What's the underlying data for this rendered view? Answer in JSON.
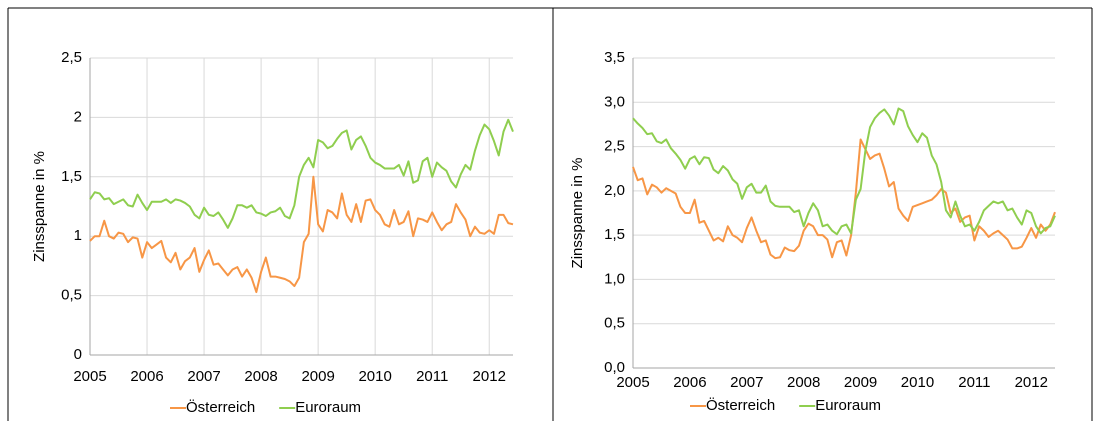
{
  "chart_data": [
    {
      "type": "line",
      "y_label": "Zinsspanne in %",
      "categories": [
        "2005",
        null,
        null,
        null,
        null,
        null,
        null,
        null,
        null,
        null,
        null,
        null,
        "2006",
        null,
        null,
        null,
        null,
        null,
        null,
        null,
        null,
        null,
        null,
        null,
        "2007",
        null,
        null,
        null,
        null,
        null,
        null,
        null,
        null,
        null,
        null,
        null,
        "2008",
        null,
        null,
        null,
        null,
        null,
        null,
        null,
        null,
        null,
        null,
        null,
        "2009",
        null,
        null,
        null,
        null,
        null,
        null,
        null,
        null,
        null,
        null,
        null,
        "2010",
        null,
        null,
        null,
        null,
        null,
        null,
        null,
        null,
        null,
        null,
        null,
        "2011",
        null,
        null,
        null,
        null,
        null,
        null,
        null,
        null,
        null,
        null,
        null,
        "2012",
        null,
        null,
        null,
        null,
        null
      ],
      "series": [
        {
          "name": "Österreich",
          "color": "#f79646",
          "values": [
            0.96,
            1.0,
            1.0,
            1.13,
            1.0,
            0.98,
            1.03,
            1.02,
            0.95,
            0.99,
            0.98,
            0.82,
            0.95,
            0.9,
            0.93,
            0.96,
            0.82,
            0.78,
            0.86,
            0.72,
            0.79,
            0.82,
            0.9,
            0.7,
            0.8,
            0.88,
            0.76,
            0.77,
            0.72,
            0.67,
            0.72,
            0.74,
            0.66,
            0.72,
            0.65,
            0.53,
            0.7,
            0.82,
            0.66,
            0.66,
            0.65,
            0.64,
            0.62,
            0.58,
            0.65,
            0.95,
            1.02,
            1.5,
            1.1,
            1.04,
            1.22,
            1.2,
            1.15,
            1.36,
            1.18,
            1.12,
            1.27,
            1.12,
            1.3,
            1.31,
            1.22,
            1.18,
            1.1,
            1.08,
            1.22,
            1.1,
            1.12,
            1.21,
            1.0,
            1.15,
            1.14,
            1.12,
            1.2,
            1.12,
            1.05,
            1.1,
            1.12,
            1.27,
            1.2,
            1.14,
            1.0,
            1.08,
            1.03,
            1.02,
            1.05,
            1.02,
            1.18,
            1.18,
            1.11,
            1.1
          ]
        },
        {
          "name": "Euroraum",
          "color": "#8fce4f",
          "values": [
            1.31,
            1.37,
            1.36,
            1.31,
            1.32,
            1.27,
            1.29,
            1.31,
            1.26,
            1.25,
            1.35,
            1.28,
            1.22,
            1.29,
            1.29,
            1.29,
            1.31,
            1.28,
            1.31,
            1.3,
            1.28,
            1.25,
            1.18,
            1.15,
            1.24,
            1.18,
            1.17,
            1.2,
            1.14,
            1.07,
            1.15,
            1.26,
            1.26,
            1.24,
            1.26,
            1.2,
            1.19,
            1.17,
            1.2,
            1.21,
            1.24,
            1.17,
            1.15,
            1.26,
            1.5,
            1.6,
            1.66,
            1.58,
            1.81,
            1.79,
            1.74,
            1.76,
            1.82,
            1.87,
            1.89,
            1.73,
            1.81,
            1.84,
            1.76,
            1.66,
            1.62,
            1.6,
            1.57,
            1.57,
            1.57,
            1.6,
            1.51,
            1.63,
            1.45,
            1.47,
            1.63,
            1.66,
            1.5,
            1.62,
            1.58,
            1.55,
            1.46,
            1.41,
            1.52,
            1.6,
            1.56,
            1.72,
            1.85,
            1.94,
            1.9,
            1.8,
            1.68,
            1.88,
            1.98,
            1.88
          ]
        }
      ],
      "ylim": [
        0,
        2.5
      ],
      "yticks": [
        0,
        {
          "value": 0.5,
          "label": "0,5"
        },
        1,
        {
          "value": 1.5,
          "label": "1,5"
        },
        2,
        {
          "value": 2.5,
          "label": "2,5"
        }
      ],
      "grid": true,
      "xgrid": true,
      "legend": "bottom"
    },
    {
      "type": "line",
      "y_label": "Zinsspanne in %",
      "categories": [
        "2005",
        null,
        null,
        null,
        null,
        null,
        null,
        null,
        null,
        null,
        null,
        null,
        "2006",
        null,
        null,
        null,
        null,
        null,
        null,
        null,
        null,
        null,
        null,
        null,
        "2007",
        null,
        null,
        null,
        null,
        null,
        null,
        null,
        null,
        null,
        null,
        null,
        "2008",
        null,
        null,
        null,
        null,
        null,
        null,
        null,
        null,
        null,
        null,
        null,
        "2009",
        null,
        null,
        null,
        null,
        null,
        null,
        null,
        null,
        null,
        null,
        null,
        "2010",
        null,
        null,
        null,
        null,
        null,
        null,
        null,
        null,
        null,
        null,
        null,
        "2011",
        null,
        null,
        null,
        null,
        null,
        null,
        null,
        null,
        null,
        null,
        null,
        "2012",
        null,
        null,
        null,
        null,
        null
      ],
      "series": [
        {
          "name": "Österreich",
          "color": "#f79646",
          "values": [
            2.27,
            2.12,
            2.14,
            1.96,
            2.07,
            2.04,
            1.98,
            2.03,
            2.0,
            1.97,
            1.82,
            1.75,
            1.75,
            1.9,
            1.64,
            1.66,
            1.55,
            1.44,
            1.47,
            1.43,
            1.6,
            1.5,
            1.47,
            1.42,
            1.58,
            1.7,
            1.55,
            1.42,
            1.44,
            1.28,
            1.24,
            1.25,
            1.36,
            1.33,
            1.32,
            1.38,
            1.55,
            1.63,
            1.6,
            1.5,
            1.5,
            1.45,
            1.25,
            1.42,
            1.44,
            1.27,
            1.5,
            1.98,
            2.58,
            2.47,
            2.36,
            2.4,
            2.42,
            2.25,
            2.05,
            2.1,
            1.8,
            1.72,
            1.66,
            1.82,
            1.84,
            1.86,
            1.88,
            1.9,
            1.95,
            2.02,
            1.98,
            1.75,
            1.8,
            1.65,
            1.7,
            1.72,
            1.44,
            1.6,
            1.55,
            1.48,
            1.52,
            1.55,
            1.5,
            1.45,
            1.35,
            1.35,
            1.37,
            1.47,
            1.58,
            1.47,
            1.62,
            1.55,
            1.62,
            1.76
          ]
        },
        {
          "name": "Euroraum",
          "color": "#8fce4f",
          "values": [
            2.82,
            2.76,
            2.71,
            2.64,
            2.65,
            2.56,
            2.54,
            2.58,
            2.48,
            2.42,
            2.35,
            2.25,
            2.36,
            2.39,
            2.3,
            2.38,
            2.37,
            2.24,
            2.2,
            2.28,
            2.23,
            2.13,
            2.08,
            1.91,
            2.04,
            2.08,
            1.98,
            1.98,
            2.06,
            1.88,
            1.83,
            1.82,
            1.82,
            1.82,
            1.76,
            1.78,
            1.6,
            1.75,
            1.86,
            1.78,
            1.6,
            1.62,
            1.55,
            1.51,
            1.6,
            1.62,
            1.52,
            1.9,
            2.02,
            2.45,
            2.72,
            2.82,
            2.88,
            2.92,
            2.85,
            2.75,
            2.93,
            2.9,
            2.73,
            2.63,
            2.55,
            2.65,
            2.6,
            2.4,
            2.3,
            2.1,
            1.78,
            1.7,
            1.88,
            1.72,
            1.6,
            1.62,
            1.55,
            1.65,
            1.78,
            1.83,
            1.88,
            1.86,
            1.88,
            1.78,
            1.8,
            1.7,
            1.62,
            1.78,
            1.75,
            1.6,
            1.52,
            1.58,
            1.6,
            1.72
          ]
        }
      ],
      "ylim": [
        0,
        3.5
      ],
      "yticks": [
        {
          "value": 0,
          "label": "0,0"
        },
        {
          "value": 0.5,
          "label": "0,5"
        },
        {
          "value": 1,
          "label": "1,0"
        },
        {
          "value": 1.5,
          "label": "1,5"
        },
        {
          "value": 2,
          "label": "2,0"
        },
        {
          "value": 2.5,
          "label": "2,5"
        },
        {
          "value": 3,
          "label": "3,0"
        },
        {
          "value": 3.5,
          "label": "3,5"
        }
      ],
      "grid": true,
      "xgrid": false,
      "legend": "bottom"
    }
  ]
}
